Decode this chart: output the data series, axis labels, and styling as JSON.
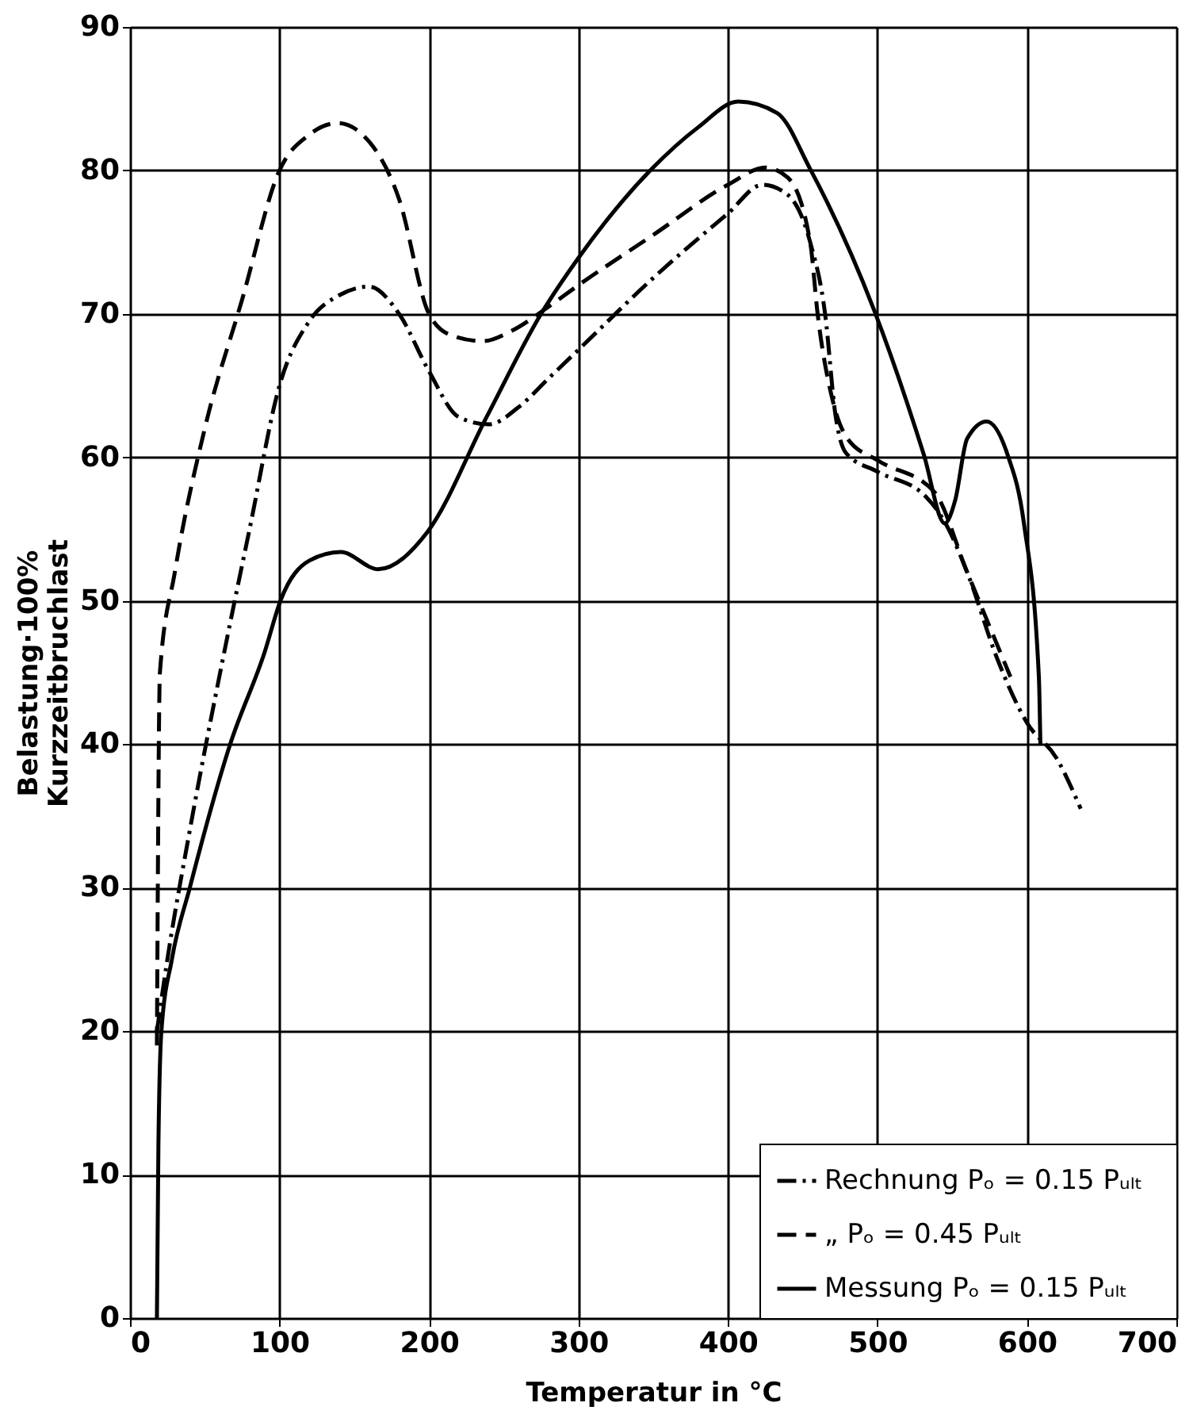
{
  "chart_data": {
    "type": "line",
    "xlabel": "Temperatur   in  °C",
    "ylabel": "Belastung·100%\nKurzzeitbruchlast",
    "xlim": [
      0,
      700
    ],
    "xticks": [
      0,
      100,
      200,
      300,
      400,
      500,
      600,
      700
    ],
    "ylim": [
      0,
      90
    ],
    "yticks": [
      0,
      10,
      20,
      30,
      40,
      50,
      60,
      70,
      80,
      90
    ],
    "grid": true,
    "legend": "bottom right",
    "marker": "none",
    "series": [
      {
        "name": "Rechnung   Pₒ = 0.15 Pᵤₗₜ",
        "color": "#000000",
        "line_style": "dashdot",
        "x": [
          18,
          25,
          40,
          63,
          80,
          100,
          120,
          140,
          160,
          180,
          200,
          220,
          240,
          260,
          280,
          300,
          350,
          400,
          423,
          440,
          455,
          465,
          472,
          479,
          500,
          532,
          545,
          560,
          580,
          600,
          620,
          636
        ],
        "values": [
          20,
          25,
          34,
          46.4,
          55,
          65,
          69.5,
          71.3,
          71.9,
          70,
          66,
          62.8,
          62.3,
          63.5,
          65.5,
          67.5,
          72.5,
          77,
          79,
          78.3,
          75,
          70,
          62.9,
          60.3,
          59,
          57.3,
          55.5,
          52,
          46,
          41.5,
          39,
          35.5
        ]
      },
      {
        "name": "„   Pₒ = 0.45 Pᵤₗₜ",
        "color": "#000000",
        "line_style": "dashed",
        "x": [
          18,
          20,
          30,
          50,
          75,
          100,
          120,
          139,
          160,
          180,
          200,
          215,
          236,
          255,
          280,
          300,
          350,
          400,
          425,
          440,
          455,
          460,
          470,
          480,
          500,
          538,
          560,
          589
        ],
        "values": [
          19,
          45,
          52,
          62,
          71,
          80,
          82.5,
          83.3,
          82,
          78,
          70,
          68.5,
          68.1,
          68.8,
          70.5,
          72,
          75.5,
          79,
          80.2,
          79.5,
          75,
          70,
          64,
          61.3,
          59.8,
          57.6,
          52,
          44.7
        ]
      },
      {
        "name": "Messung   Pₒ = 0.15 Pᵤₗₜ",
        "color": "#000000",
        "line_style": "solid",
        "x": [
          18,
          19,
          21,
          28,
          40,
          67,
          90,
          101,
          120,
          141,
          166,
          199,
          239,
          275,
          300,
          349,
          380,
          407,
          433,
          455,
          498,
          531,
          545,
          552,
          560,
          573,
          587,
          598,
          608,
          609
        ],
        "values": [
          0,
          12,
          20,
          25,
          30,
          40,
          46.4,
          50.1,
          52.8,
          53.4,
          52.2,
          54.8,
          62.9,
          70,
          73.9,
          80.1,
          83,
          84.8,
          84,
          80.1,
          70.2,
          60.2,
          55.4,
          57,
          61.3,
          62.5,
          60.2,
          55.4,
          44.7,
          40
        ]
      }
    ]
  }
}
